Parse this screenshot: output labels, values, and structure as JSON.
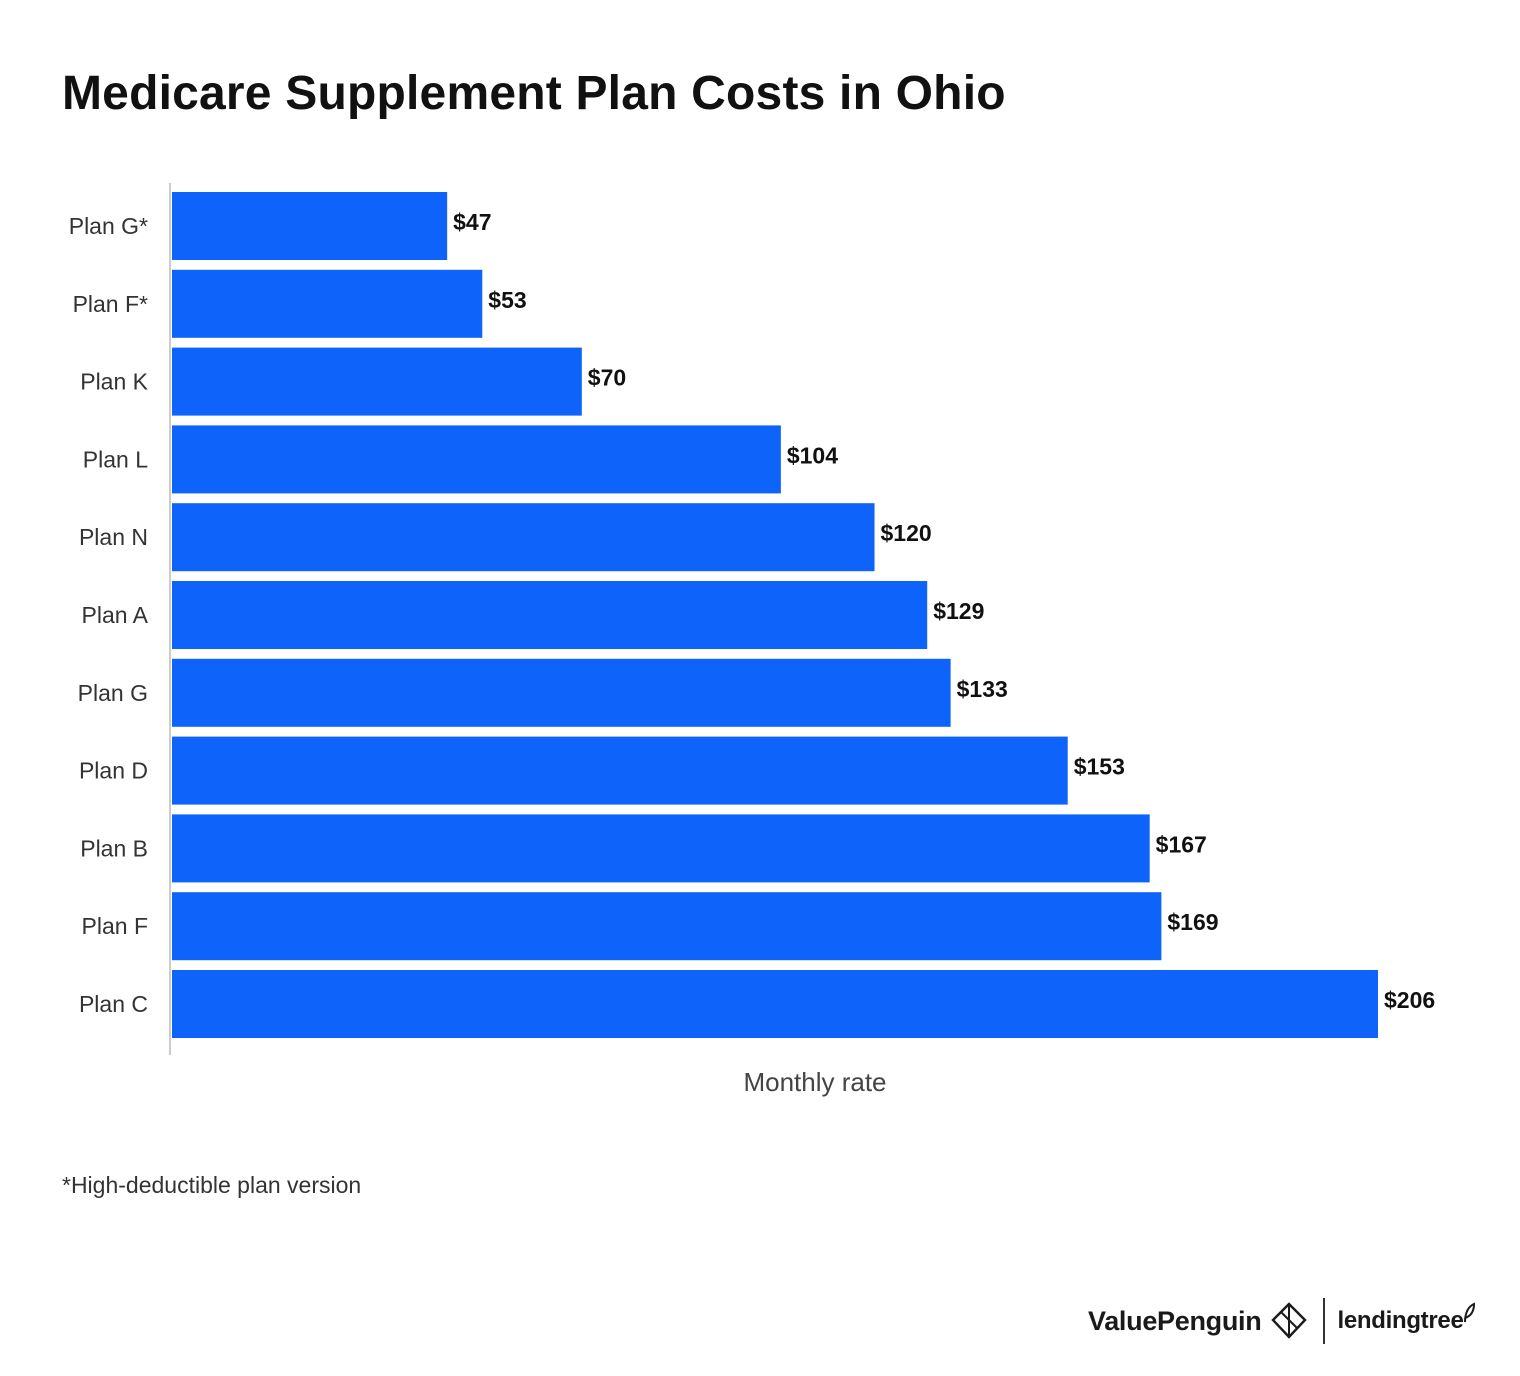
{
  "title": "Medicare Supplement Plan Costs in Ohio",
  "footnote": "*High-deductible plan version",
  "brand": {
    "valuepenguin": "ValuePenguin",
    "lendingtree": "lendingtree",
    "valuepenguin_icon": "penguin-diamond-icon",
    "lendingtree_icon": "leaf-icon"
  },
  "colors": {
    "bar": "#0d63fa",
    "axis": "#cccccc",
    "text": "#111111"
  },
  "chart_data": {
    "type": "bar",
    "orientation": "horizontal",
    "title": "Medicare Supplement Plan Costs in Ohio",
    "xlabel": "Monthly rate",
    "ylabel": "",
    "grid": false,
    "xlim": [
      0,
      206
    ],
    "categories": [
      "Plan G*",
      "Plan F*",
      "Plan K",
      "Plan L",
      "Plan N",
      "Plan A",
      "Plan G",
      "Plan D",
      "Plan B",
      "Plan F",
      "Plan C"
    ],
    "values": [
      47,
      53,
      70,
      104,
      120,
      129,
      133,
      153,
      167,
      169,
      206
    ],
    "value_labels": [
      "$47",
      "$53",
      "$70",
      "$104",
      "$120",
      "$129",
      "$133",
      "$153",
      "$167",
      "$169",
      "$206"
    ]
  }
}
